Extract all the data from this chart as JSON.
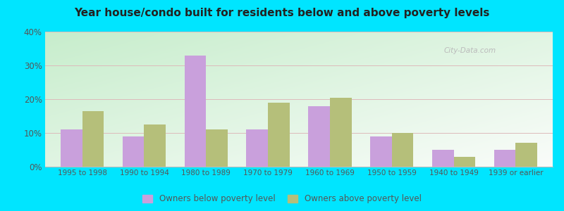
{
  "title": "Year house/condo built for residents below and above poverty levels",
  "categories": [
    "1995 to 1998",
    "1990 to 1994",
    "1980 to 1989",
    "1970 to 1979",
    "1960 to 1969",
    "1950 to 1959",
    "1940 to 1949",
    "1939 or earlier"
  ],
  "below_poverty": [
    11,
    9,
    33,
    11,
    18,
    9,
    5,
    5
  ],
  "above_poverty": [
    16.5,
    12.5,
    11,
    19,
    20.5,
    10,
    3,
    7
  ],
  "below_color": "#c9a0dc",
  "above_color": "#b5bf7a",
  "ylim": [
    0,
    40
  ],
  "yticks": [
    0,
    10,
    20,
    30,
    40
  ],
  "bg_topleft": "#c8e6c0",
  "bg_bottomright": "#f0faf8",
  "outer_background": "#00e5ff",
  "bar_width": 0.35,
  "legend_below_label": "Owners below poverty level",
  "legend_above_label": "Owners above poverty level",
  "grid_color": "#ddbbbb",
  "watermark": "City-Data.com"
}
